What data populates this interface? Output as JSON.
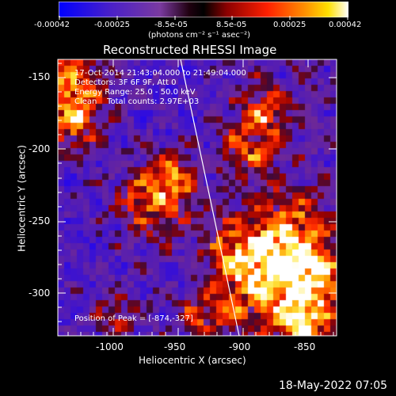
{
  "colorbar": {
    "tick_labels": [
      "-0.00042",
      "-0.00025",
      "-8.5e-05",
      "8.5e-05",
      "0.00025",
      "0.00042"
    ],
    "unit_label": "(photons cm⁻² s⁻¹ asec⁻²)",
    "colors": [
      "#0000ff",
      "#5a1fb4",
      "#7a3aa0",
      "#000000",
      "#8b0000",
      "#ff2000",
      "#ff8000",
      "#ffd000",
      "#ffffff"
    ]
  },
  "image": {
    "title": "Reconstructed RHESSI Image",
    "annotations": {
      "time": "17-Oct-2014 21:43:04.000 to 21:49:04.000",
      "detectors": "Detectors: 3F 6F 9F, Att 0",
      "energy": "Energy Range: 25.0 - 50.0 keV",
      "clean": "Clean    Total counts: 2.97E+03",
      "peak": "Position of Peak = [-874,-327]"
    },
    "x_axis": {
      "label": "Heliocentric X (arcsec)",
      "ticks": [
        "-1000",
        "-950",
        "-900",
        "-850"
      ]
    },
    "y_axis": {
      "label": "Heliocentric Y (arcsec)",
      "ticks": [
        "-150",
        "-200",
        "-250",
        "-300"
      ]
    }
  },
  "footer": {
    "timestamp": "18-May-2022 07:05"
  }
}
